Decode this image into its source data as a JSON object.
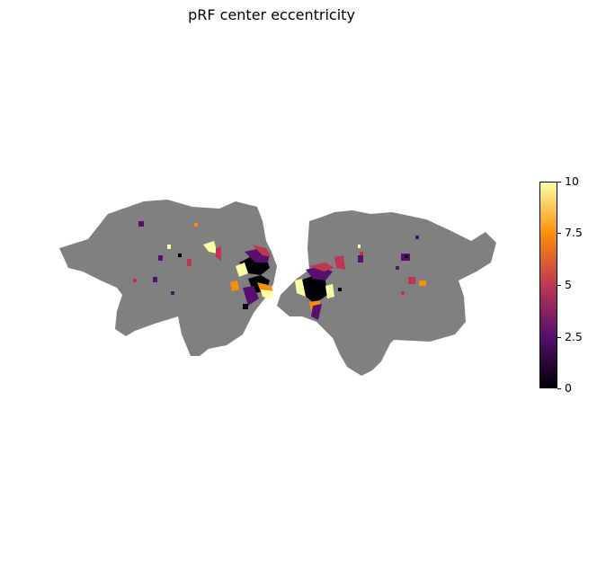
{
  "figure": {
    "title": "pRF center eccentricity",
    "colormap": "inferno",
    "background_cortex_color": "#808080"
  },
  "colorbar": {
    "ticks": [
      "10",
      "7.5",
      "5",
      "2.5",
      "0"
    ],
    "colors": [
      "#fcffa4",
      "#f98e09",
      "#bc3754",
      "#57106e",
      "#000004"
    ]
  }
}
